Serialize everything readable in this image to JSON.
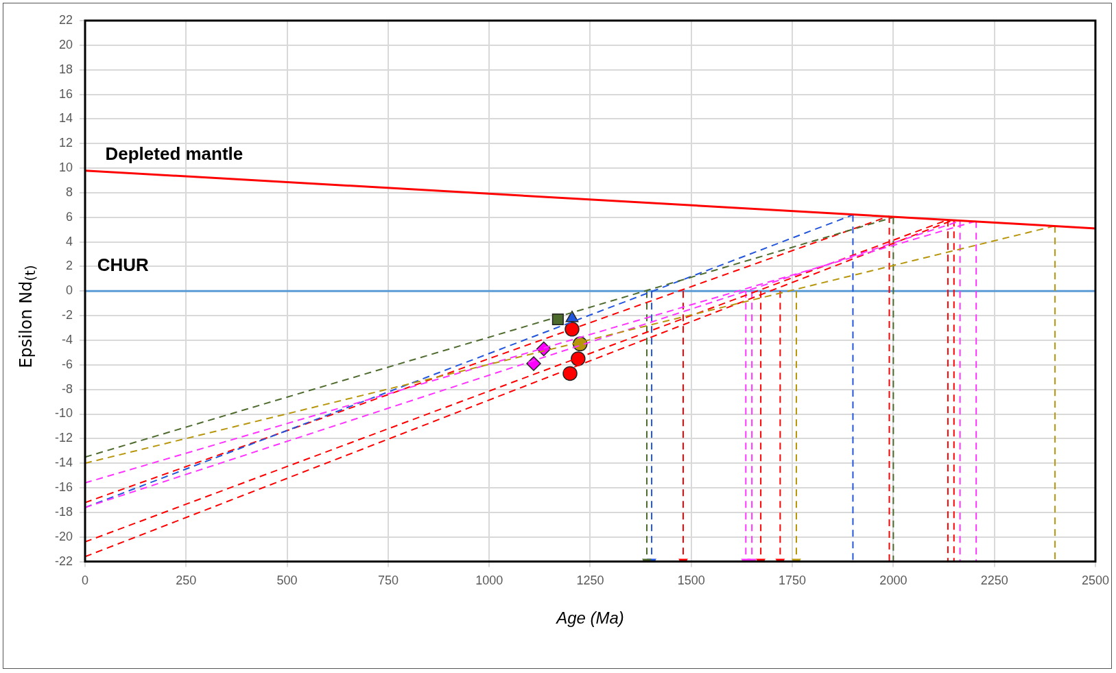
{
  "chart_data": {
    "type": "line",
    "xlabel": "Age (Ma)",
    "ylabel": "Epsilon Nd$_{(t)}$",
    "xlim": [
      0,
      2500
    ],
    "xticks": [
      0,
      250,
      500,
      750,
      1000,
      1250,
      1500,
      1750,
      2000,
      2250,
      2500
    ],
    "ylim": [
      -22,
      22
    ],
    "yticks": [
      -22,
      -20,
      -18,
      -16,
      -14,
      -12,
      -10,
      -8,
      -6,
      -4,
      -2,
      0,
      2,
      4,
      6,
      8,
      10,
      12,
      14,
      16,
      18,
      20,
      22
    ],
    "grid": true,
    "legend": false,
    "ref_lines": [
      {
        "axis": "y",
        "value": 0,
        "color": "#5b9bd5",
        "line_style": "solid"
      }
    ],
    "annotations": [
      "Depleted mantle",
      "CHUR"
    ],
    "series": [
      {
        "color": "#ff0000",
        "line_style": "solid",
        "marker": "none",
        "x": [
          0,
          2500
        ],
        "values": [
          9.8,
          5.1
        ]
      },
      {
        "color": "#4e6b2e",
        "line_style": "dashed",
        "marker": "none",
        "x": [
          0,
          2000
        ],
        "values": [
          -13.5,
          6.0
        ]
      },
      {
        "color": "#b8960c",
        "line_style": "dashed",
        "marker": "none",
        "x": [
          0,
          2400
        ],
        "values": [
          -14.0,
          5.3
        ]
      },
      {
        "color": "#ff33ff",
        "line_style": "dashed",
        "marker": "none",
        "x": [
          0,
          2205
        ],
        "values": [
          -15.6,
          5.7
        ]
      },
      {
        "color": "#ff33ff",
        "line_style": "dashed",
        "marker": "none",
        "x": [
          0,
          2165
        ],
        "values": [
          -17.6,
          5.7
        ]
      },
      {
        "color": "#2255dd",
        "line_style": "dashed",
        "marker": "none",
        "x": [
          0,
          1900
        ],
        "values": [
          -17.6,
          6.2
        ]
      },
      {
        "color": "#ff0000",
        "line_style": "dashed",
        "marker": "none",
        "x": [
          0,
          1990
        ],
        "values": [
          -17.2,
          6.1
        ]
      },
      {
        "color": "#ff0000",
        "line_style": "dashed",
        "marker": "none",
        "x": [
          0,
          2135
        ],
        "values": [
          -20.4,
          5.8
        ]
      },
      {
        "color": "#ff0000",
        "line_style": "dashed",
        "marker": "none",
        "x": [
          0,
          2150
        ],
        "values": [
          -21.6,
          5.8
        ]
      },
      {
        "color": "#2255dd",
        "line_style": "dashed",
        "marker": "none",
        "x": [
          1900,
          1900
        ],
        "values": [
          6.2,
          -22
        ]
      },
      {
        "color": "#ff0000",
        "line_style": "dashed",
        "marker": "none",
        "x": [
          1990,
          1990
        ],
        "values": [
          6.1,
          -22
        ]
      },
      {
        "color": "#4e6b2e",
        "line_style": "dashed",
        "marker": "none",
        "x": [
          2000,
          2000
        ],
        "values": [
          6.0,
          -22
        ]
      },
      {
        "color": "#ff0000",
        "line_style": "dashed",
        "marker": "none",
        "x": [
          2135,
          2135
        ],
        "values": [
          5.8,
          -22
        ]
      },
      {
        "color": "#ff0000",
        "line_style": "dashed",
        "marker": "none",
        "x": [
          2150,
          2150
        ],
        "values": [
          5.8,
          -22
        ]
      },
      {
        "color": "#ff33ff",
        "line_style": "dashed",
        "marker": "none",
        "x": [
          2165,
          2165
        ],
        "values": [
          5.7,
          -22
        ]
      },
      {
        "color": "#ff33ff",
        "line_style": "dashed",
        "marker": "none",
        "x": [
          2205,
          2205
        ],
        "values": [
          5.7,
          -22
        ]
      },
      {
        "color": "#b8960c",
        "line_style": "dashed",
        "marker": "none",
        "x": [
          2400,
          2400
        ],
        "values": [
          5.3,
          -22
        ]
      },
      {
        "color": "#4e6b2e",
        "line_style": "dashed",
        "marker": "triangle",
        "x": [
          1390,
          1390
        ],
        "values": [
          0,
          -22
        ]
      },
      {
        "color": "#2255dd",
        "line_style": "dashed",
        "marker": "triangle",
        "x": [
          1402,
          1402
        ],
        "values": [
          0,
          -22
        ]
      },
      {
        "color": "#ff0000",
        "line_style": "dashed",
        "marker": "triangle",
        "x": [
          1480,
          1480
        ],
        "values": [
          0,
          -22
        ]
      },
      {
        "color": "#ff33ff",
        "line_style": "dashed",
        "marker": "triangle",
        "x": [
          1635,
          1635
        ],
        "values": [
          0,
          -22
        ]
      },
      {
        "color": "#ff33ff",
        "line_style": "dashed",
        "marker": "triangle",
        "x": [
          1650,
          1650
        ],
        "values": [
          0,
          -22
        ]
      },
      {
        "color": "#ff0000",
        "line_style": "dashed",
        "marker": "triangle",
        "x": [
          1672,
          1672
        ],
        "values": [
          0,
          -22
        ]
      },
      {
        "color": "#ff0000",
        "line_style": "dashed",
        "marker": "triangle",
        "x": [
          1720,
          1720
        ],
        "values": [
          0,
          -22
        ]
      },
      {
        "color": "#b8960c",
        "line_style": "dashed",
        "marker": "triangle",
        "x": [
          1760,
          1760
        ],
        "values": [
          0,
          -22
        ]
      },
      {
        "type": "scatter",
        "color": "#ff00ff",
        "marker": "diamond",
        "x": [
          1135,
          1110
        ],
        "values": [
          -4.7,
          -5.9
        ]
      },
      {
        "type": "scatter",
        "color": "#b8960c",
        "marker": "circle",
        "x": [
          1225
        ],
        "values": [
          -4.3
        ]
      },
      {
        "type": "scatter",
        "color": "#2255dd",
        "marker": "triangle",
        "x": [
          1205
        ],
        "values": [
          -2.2
        ]
      },
      {
        "type": "scatter",
        "color": "#4e6b2e",
        "marker": "square",
        "x": [
          1170
        ],
        "values": [
          -2.3
        ]
      },
      {
        "type": "scatter",
        "color": "#ff0000",
        "marker": "circle",
        "x": [
          1205,
          1220,
          1200
        ],
        "values": [
          -3.1,
          -5.5,
          -6.7
        ]
      }
    ]
  }
}
